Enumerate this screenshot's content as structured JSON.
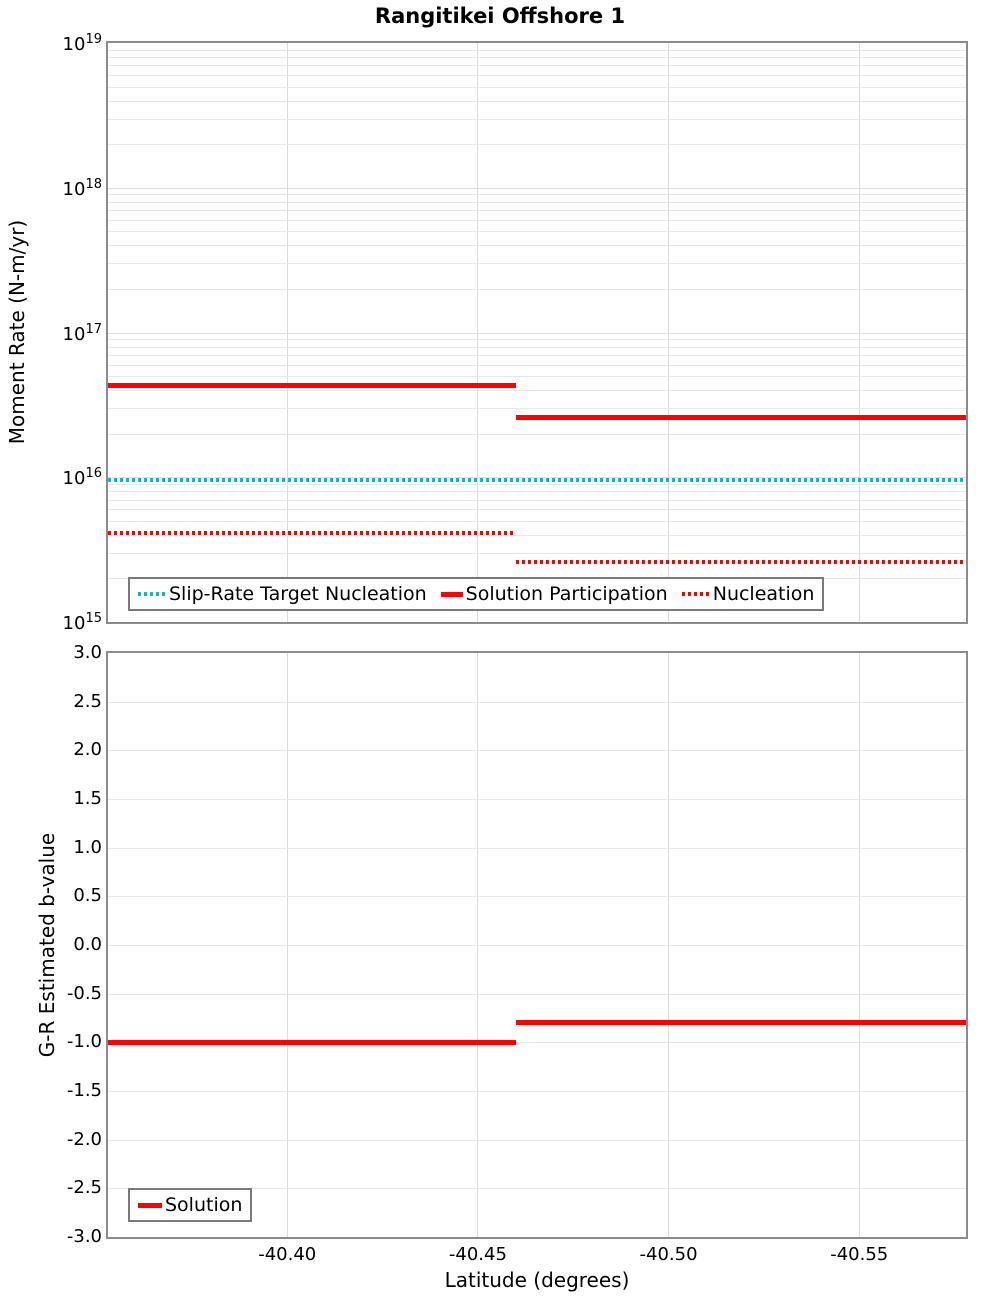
{
  "figure_title": "Rangitikei Offshore 1",
  "accent_colors": {
    "red": "#FF0000",
    "cyan": "#00BFBF"
  },
  "chart_data": [
    {
      "type": "line",
      "subplot": "top",
      "title": "Rangitikei Offshore 1",
      "ylabel": "Moment Rate (N-m/yr)",
      "yscale": "log",
      "ylim": [
        1000000000000000.0,
        1e+19
      ],
      "xlim": [
        -40.353,
        -40.578
      ],
      "grid": true,
      "show_x_tick_labels": false,
      "x_ticks": [
        {
          "value": -40.4,
          "label": "-40.40"
        },
        {
          "value": -40.45,
          "label": "-40.45"
        },
        {
          "value": -40.5,
          "label": "-40.50"
        },
        {
          "value": -40.55,
          "label": "-40.55"
        }
      ],
      "y_ticks": [
        {
          "exponent": 19,
          "label": "10^19"
        },
        {
          "exponent": 18,
          "label": "10^18"
        },
        {
          "exponent": 17,
          "label": "10^17"
        },
        {
          "exponent": 16,
          "label": "10^16"
        },
        {
          "exponent": 15,
          "label": "10^15"
        }
      ],
      "legend": {
        "position": "bottom-left",
        "entries": [
          "Slip-Rate Target Nucleation",
          "Solution Participation",
          "Nucleation"
        ]
      },
      "series": [
        {
          "name": "Slip-Rate Target Nucleation",
          "color": "#00BFBF",
          "line_style": "dotted",
          "line_width": 4,
          "segments": [
            {
              "x_start": -40.353,
              "x_end": -40.578,
              "y": 9600000000000000.0
            }
          ]
        },
        {
          "name": "Solution Participation",
          "color": "#FF0000",
          "line_style": "solid",
          "line_width": 5,
          "segments": [
            {
              "x_start": -40.353,
              "x_end": -40.46,
              "y": 4.3e+16
            },
            {
              "x_start": -40.46,
              "x_end": -40.578,
              "y": 2.6e+16
            }
          ]
        },
        {
          "name": "Nucleation",
          "color": "#FF0000",
          "line_style": "dotted",
          "line_width": 4,
          "segments": [
            {
              "x_start": -40.353,
              "x_end": -40.46,
              "y": 4100000000000000.0
            },
            {
              "x_start": -40.46,
              "x_end": -40.578,
              "y": 2600000000000000.0
            }
          ]
        }
      ]
    },
    {
      "type": "line",
      "subplot": "bottom",
      "ylabel": "G-R Estimated b-value",
      "xlabel": "Latitude (degrees)",
      "yscale": "linear",
      "ylim": [
        -3.0,
        3.0
      ],
      "xlim": [
        -40.353,
        -40.578
      ],
      "grid": true,
      "show_x_tick_labels": true,
      "x_ticks": [
        {
          "value": -40.4,
          "label": "-40.40"
        },
        {
          "value": -40.45,
          "label": "-40.45"
        },
        {
          "value": -40.5,
          "label": "-40.50"
        },
        {
          "value": -40.55,
          "label": "-40.55"
        }
      ],
      "y_ticks": [
        {
          "value": 3.0,
          "label": "3.0"
        },
        {
          "value": 2.5,
          "label": "2.5"
        },
        {
          "value": 2.0,
          "label": "2.0"
        },
        {
          "value": 1.5,
          "label": "1.5"
        },
        {
          "value": 1.0,
          "label": "1.0"
        },
        {
          "value": 0.5,
          "label": "0.5"
        },
        {
          "value": 0.0,
          "label": "0.0"
        },
        {
          "value": -0.5,
          "label": "-0.5"
        },
        {
          "value": -1.0,
          "label": "-1.0"
        },
        {
          "value": -1.5,
          "label": "-1.5"
        },
        {
          "value": -2.0,
          "label": "-2.0"
        },
        {
          "value": -2.5,
          "label": "-2.5"
        },
        {
          "value": -3.0,
          "label": "-3.0"
        }
      ],
      "legend": {
        "position": "bottom-left",
        "entries": [
          "Solution"
        ]
      },
      "series": [
        {
          "name": "Solution",
          "color": "#FF0000",
          "line_style": "solid",
          "line_width": 5,
          "segments": [
            {
              "x_start": -40.353,
              "x_end": -40.46,
              "y": -1.0
            },
            {
              "x_start": -40.46,
              "x_end": -40.578,
              "y": -0.8
            }
          ]
        }
      ]
    }
  ]
}
